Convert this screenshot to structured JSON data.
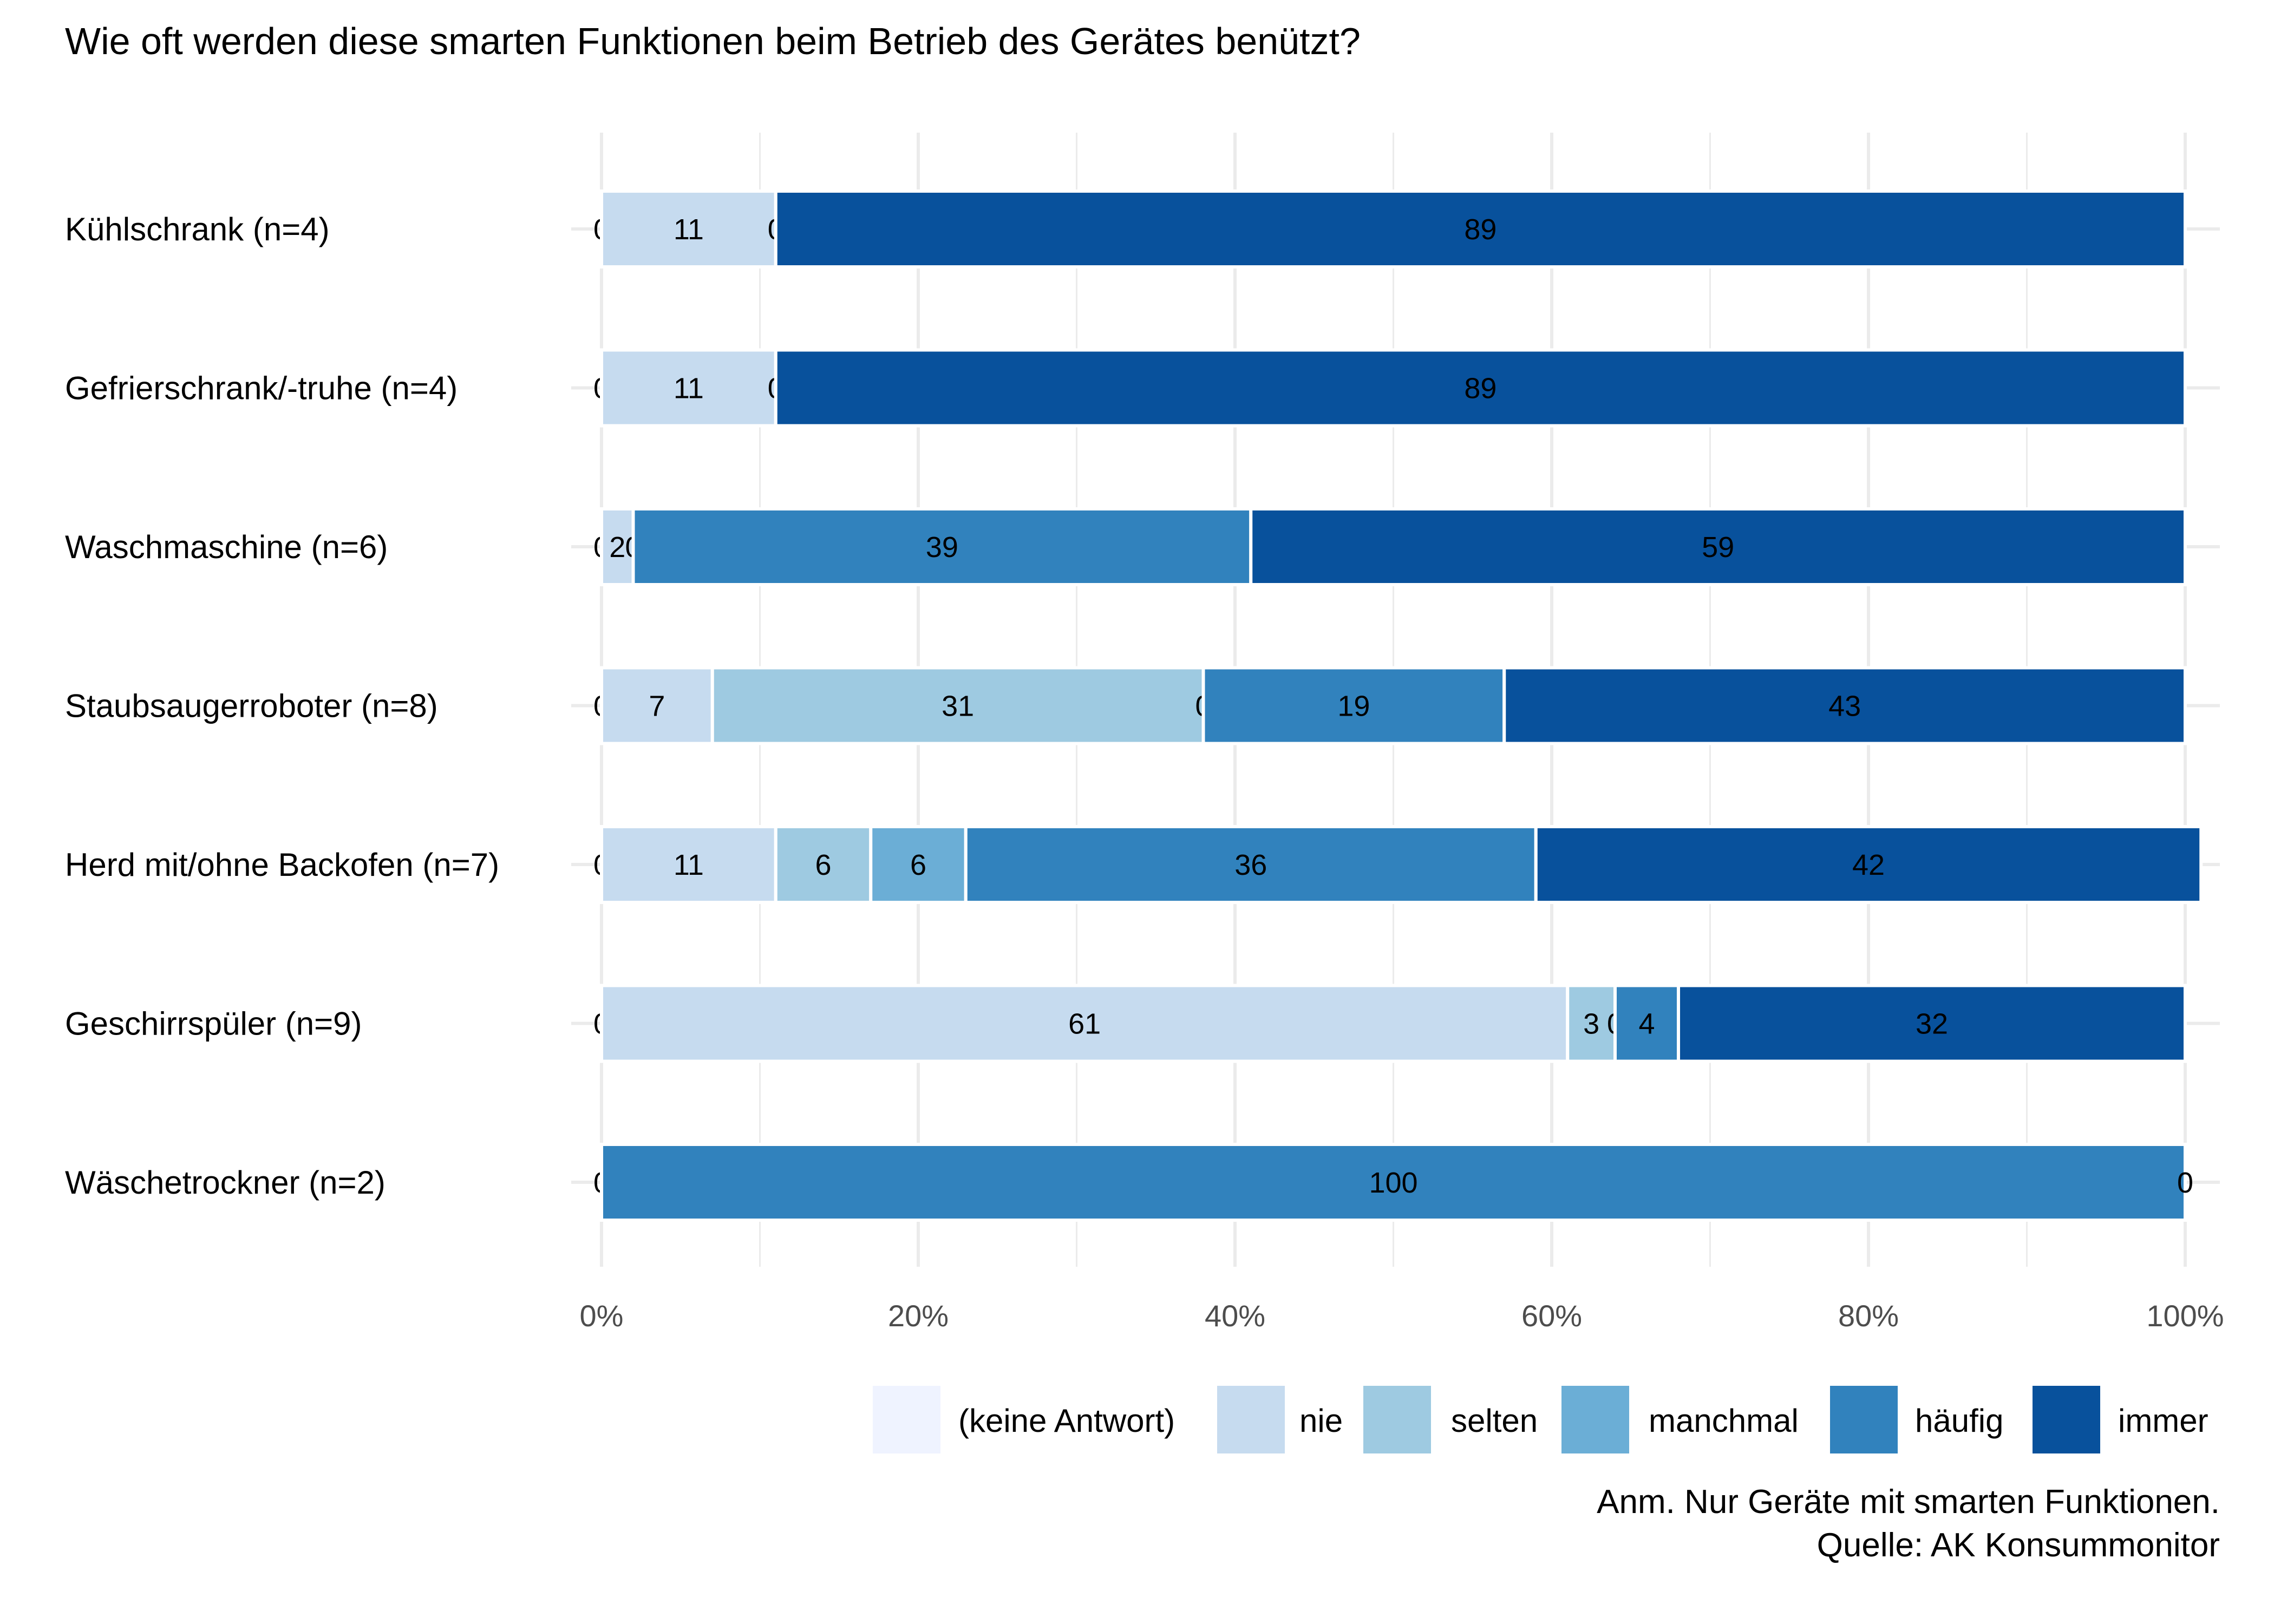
{
  "chart_data": {
    "type": "bar",
    "orientation": "horizontal",
    "stacked": true,
    "title": "Wie oft werden diese smarten Funktionen beim Betrieb des Gerätes benützt?",
    "xlabel": "",
    "ylabel": "",
    "xlim": [
      0,
      100
    ],
    "x_ticks": [
      "0%",
      "20%",
      "40%",
      "60%",
      "80%",
      "100%"
    ],
    "grid": true,
    "legend_position": "bottom-right",
    "categories": [
      "Kühlschrank (n=4)",
      "Gefrierschrank/-truhe (n=4)",
      "Waschmaschine (n=6)",
      "Staubsaugerroboter (n=8)",
      "Herd mit/ohne Backofen (n=7)",
      "Geschirrspüler (n=9)",
      "Wäschetrockner (n=2)"
    ],
    "series": [
      {
        "name": "(keine Antwort)",
        "color": "#EFF3FF",
        "values": [
          0,
          0,
          0,
          0,
          0,
          0,
          0
        ],
        "labels": [
          "0",
          "0",
          "0",
          "0",
          "0",
          "0",
          "0"
        ]
      },
      {
        "name": "nie",
        "color": "#C6DBEF",
        "values": [
          11,
          11,
          2,
          7,
          11,
          61,
          0
        ],
        "labels": [
          "11",
          "11",
          "2",
          "7",
          "11",
          "61",
          ""
        ]
      },
      {
        "name": "selten",
        "color": "#9ECAE1",
        "values": [
          0,
          0,
          0,
          31,
          6,
          3,
          0
        ],
        "labels": [
          "0",
          "0",
          "0",
          "31",
          "6",
          "3",
          ""
        ]
      },
      {
        "name": "manchmal",
        "color": "#6BAED6",
        "values": [
          0,
          0,
          0,
          0,
          6,
          0,
          0
        ],
        "labels": [
          "",
          "",
          "",
          "0",
          "6",
          "0",
          ""
        ]
      },
      {
        "name": "häufig",
        "color": "#3182BD",
        "values": [
          0,
          0,
          39,
          19,
          36,
          4,
          100
        ],
        "labels": [
          "",
          "",
          "39",
          "19",
          "36",
          "4",
          "100"
        ]
      },
      {
        "name": "immer",
        "color": "#08519C",
        "values": [
          89,
          89,
          59,
          43,
          42,
          32,
          0
        ],
        "labels": [
          "89",
          "89",
          "59",
          "43",
          "42",
          "32",
          "0"
        ]
      }
    ],
    "caption": [
      "Anm. Nur Geräte mit smarten Funktionen.",
      "Quelle: AK Konsummonitor"
    ]
  }
}
